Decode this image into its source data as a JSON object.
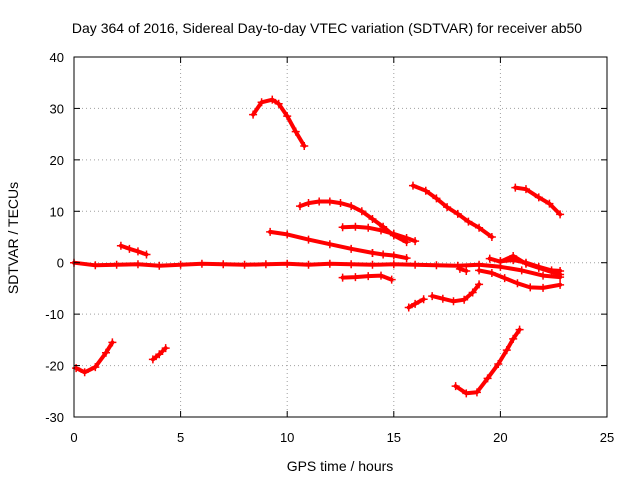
{
  "chart_data": {
    "type": "scatter",
    "title": "Day 364 of 2016, Sidereal Day-to-day VTEC variation (SDTVAR) for receiver ab50",
    "xlabel": "GPS time / hours",
    "ylabel": "SDTVAR / TECUs",
    "xlim": [
      0,
      25
    ],
    "ylim": [
      -30,
      40
    ],
    "xticks": [
      0,
      5,
      10,
      15,
      20,
      25
    ],
    "yticks": [
      -30,
      -20,
      -10,
      0,
      10,
      20,
      30,
      40
    ],
    "xtick_labels": [
      "0",
      "5",
      "10",
      "15",
      "20",
      "25"
    ],
    "ytick_labels": [
      "-30",
      "-20",
      "-10",
      "0",
      "10",
      "20",
      "30",
      "40"
    ],
    "grid": true,
    "marker": "+",
    "color": "#ff0000",
    "series": [
      {
        "x": [
          0.0,
          1.0,
          2.0,
          3.0,
          4.0,
          5.0,
          6.0,
          7.0,
          8.0,
          9.0,
          10.0,
          11.0,
          12.0,
          13.0,
          14.0,
          15.0,
          16.0,
          17.0,
          18.0,
          19.0,
          20.0,
          21.0,
          22.0,
          22.8
        ],
        "y": [
          0.0,
          -0.5,
          -0.4,
          -0.3,
          -0.6,
          -0.4,
          -0.2,
          -0.3,
          -0.4,
          -0.3,
          -0.2,
          -0.4,
          -0.2,
          -0.3,
          -0.4,
          -0.3,
          -0.4,
          -0.5,
          -0.6,
          -0.4,
          -0.8,
          -1.5,
          -2.5,
          -2.8
        ]
      },
      {
        "x": [
          0.1,
          0.5,
          1.0,
          1.5,
          1.8
        ],
        "y": [
          -20.5,
          -21.3,
          -20.3,
          -17.5,
          -15.5
        ]
      },
      {
        "x": [
          2.2,
          2.6,
          3.0,
          3.4
        ],
        "y": [
          3.3,
          2.7,
          2.2,
          1.6
        ]
      },
      {
        "x": [
          3.7,
          4.0,
          4.3
        ],
        "y": [
          -18.8,
          -17.8,
          -16.6
        ]
      },
      {
        "x": [
          8.4,
          8.8,
          9.3,
          9.6,
          10.0,
          10.4,
          10.8
        ],
        "y": [
          28.8,
          31.2,
          31.7,
          30.9,
          28.5,
          25.5,
          22.7
        ]
      },
      {
        "x": [
          9.2,
          10.0,
          11.0,
          12.0,
          13.0,
          14.0
        ],
        "y": [
          6.0,
          5.5,
          4.5,
          3.6,
          2.7,
          1.9
        ]
      },
      {
        "x": [
          10.6,
          11.0,
          11.5,
          12.0,
          12.5,
          13.0,
          13.5,
          14.0,
          14.5,
          15.0,
          15.6
        ],
        "y": [
          11.0,
          11.6,
          11.9,
          11.9,
          11.6,
          11.0,
          10.0,
          8.5,
          7.0,
          5.3,
          4.0
        ]
      },
      {
        "x": [
          12.6,
          13.2,
          13.8,
          14.4,
          15.0,
          15.6,
          16.0
        ],
        "y": [
          6.9,
          7.0,
          6.8,
          6.3,
          5.6,
          4.8,
          4.2
        ]
      },
      {
        "x": [
          12.6,
          13.2,
          13.8,
          14.4,
          14.9
        ],
        "y": [
          -2.9,
          -2.8,
          -2.6,
          -2.5,
          -3.3
        ]
      },
      {
        "x": [
          14.0,
          14.5,
          15.0,
          15.6
        ],
        "y": [
          1.9,
          1.6,
          1.4,
          0.9
        ]
      },
      {
        "x": [
          15.7,
          16.0,
          16.4
        ],
        "y": [
          -8.7,
          -8.0,
          -7.1
        ]
      },
      {
        "x": [
          15.9,
          16.5,
          17.0,
          17.5,
          18.0,
          18.5,
          19.0,
          19.6
        ],
        "y": [
          15.0,
          14.0,
          12.5,
          10.8,
          9.5,
          8.0,
          6.8,
          5.0
        ]
      },
      {
        "x": [
          16.8,
          17.3,
          17.8,
          18.3,
          18.7,
          19.0
        ],
        "y": [
          -6.5,
          -7.0,
          -7.5,
          -7.2,
          -5.8,
          -4.2
        ]
      },
      {
        "x": [
          17.9,
          18.4,
          18.9,
          19.4,
          19.9,
          20.3,
          20.6,
          20.9
        ],
        "y": [
          -24.0,
          -25.4,
          -25.2,
          -22.5,
          -19.7,
          -17.0,
          -14.8,
          -13.0
        ]
      },
      {
        "x": [
          18.1,
          18.4
        ],
        "y": [
          -1.2,
          -1.6
        ]
      },
      {
        "x": [
          19.0,
          19.6,
          20.2,
          20.8,
          21.4,
          22.0,
          22.8
        ],
        "y": [
          -1.5,
          -2.0,
          -3.0,
          -4.0,
          -4.8,
          -4.9,
          -4.3
        ]
      },
      {
        "x": [
          19.5,
          20.0,
          20.6,
          21.2,
          21.8,
          22.4,
          22.8
        ],
        "y": [
          0.8,
          0.2,
          1.3,
          -0.2,
          -1.0,
          -1.8,
          -2.3
        ]
      },
      {
        "x": [
          20.0,
          20.6,
          21.2,
          21.8,
          22.4,
          22.8
        ],
        "y": [
          0.3,
          0.5,
          0.0,
          -0.8,
          -1.5,
          -1.6
        ]
      },
      {
        "x": [
          20.7,
          21.2,
          21.8,
          22.3,
          22.8
        ],
        "y": [
          14.6,
          14.3,
          12.7,
          11.5,
          9.4
        ]
      }
    ]
  }
}
